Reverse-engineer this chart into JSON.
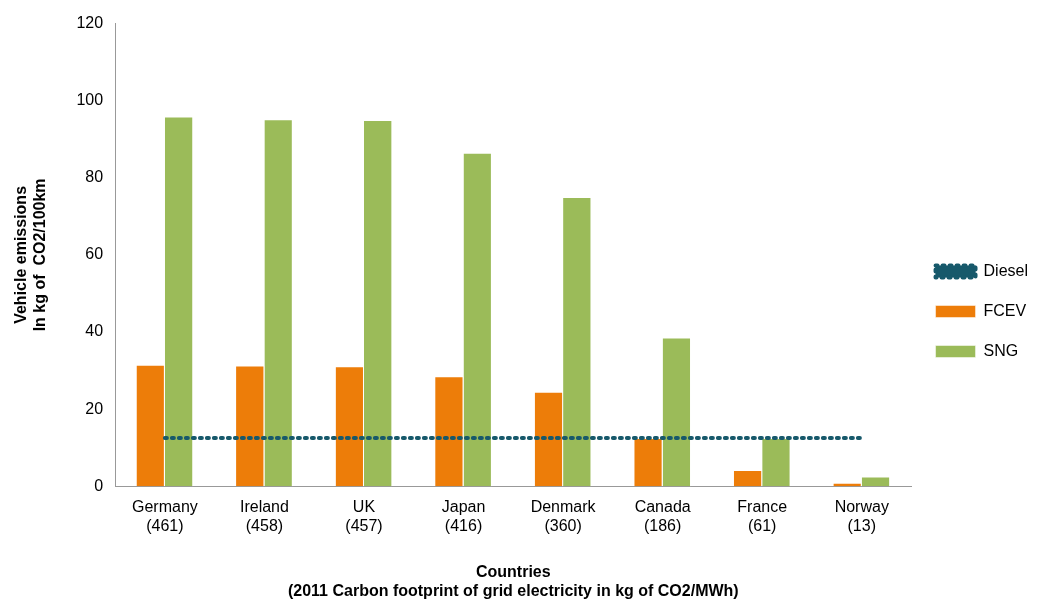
{
  "chart_data": {
    "type": "bar",
    "xlabel": "Countries\n(2011 Carbon footprint of grid electricity in kg of CO2/MWh)",
    "ylabel": "Vehicle emissions\nIn kg of  CO2/100km",
    "categories": [
      "Germany (461)",
      "Ireland (458)",
      "UK (457)",
      "Japan (416)",
      "Denmark (360)",
      "Canada (186)",
      "France (61)",
      "Norway (13)"
    ],
    "series": [
      {
        "name": "FCEV",
        "color": "#ed7d09",
        "values": [
          31.5,
          31.3,
          31.1,
          28.5,
          24.5,
          12.5,
          4.2,
          0.9
        ]
      },
      {
        "name": "SNG",
        "color": "#9bbb59",
        "values": [
          95.9,
          95.2,
          95.0,
          86.5,
          75.0,
          38.6,
          12.5,
          2.5
        ]
      },
      {
        "name": "Diesel",
        "type": "line",
        "color": "#17596b",
        "line_style": "dotted",
        "marker": "none",
        "values": [
          12.5,
          12.5,
          12.5,
          12.5,
          12.5,
          12.5,
          12.5,
          12.5
        ]
      }
    ],
    "ylim": [
      0,
      120
    ],
    "yticks": [
      0,
      20,
      40,
      60,
      80,
      100,
      120
    ],
    "grid": false,
    "legend": "right"
  }
}
